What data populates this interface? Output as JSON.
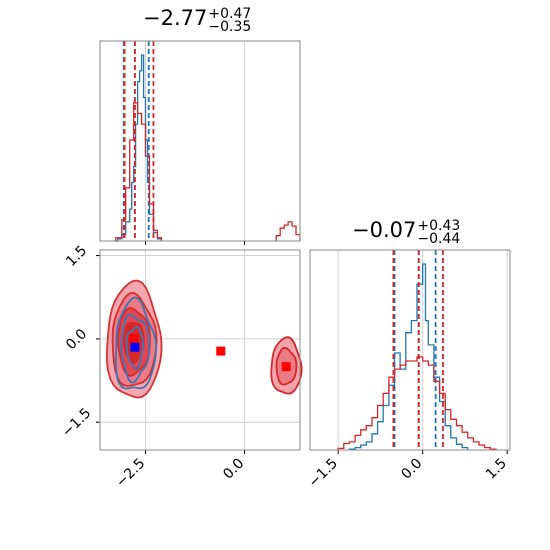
{
  "chart_data": [
    {
      "type": "histogram",
      "panel": "top-left marginal",
      "title_value": "−2.77",
      "title_plus": "+0.47",
      "title_minus": "−0.35",
      "x_ticks": [
        -2.5,
        0.0
      ],
      "xlim": [
        -3.65,
        1.4
      ],
      "grid": true,
      "series": [
        {
          "color": "#1f77b4",
          "bins": [
            [
              -3.3,
              -3.2,
              0
            ],
            [
              -3.2,
              -3.1,
              2
            ],
            [
              -3.1,
              -3.0,
              6
            ],
            [
              -3.0,
              -2.9,
              18
            ],
            [
              -2.9,
              -2.85,
              30
            ],
            [
              -2.85,
              -2.8,
              55
            ],
            [
              -2.8,
              -2.75,
              70
            ],
            [
              -2.75,
              -2.7,
              110
            ],
            [
              -2.7,
              -2.65,
              150
            ],
            [
              -2.65,
              -2.6,
              160
            ],
            [
              -2.6,
              -2.55,
              175
            ],
            [
              -2.55,
              -2.5,
              135
            ],
            [
              -2.5,
              -2.45,
              95
            ],
            [
              -2.45,
              -2.4,
              55
            ],
            [
              -2.4,
              -2.3,
              25
            ],
            [
              -2.3,
              -2.2,
              8
            ],
            [
              -2.2,
              -2.1,
              2
            ]
          ],
          "quantile_lines": [
            -3.05,
            -2.77,
            -2.42
          ]
        },
        {
          "color": "#d62728",
          "bins": [
            [
              -3.25,
              -3.1,
              3
            ],
            [
              -3.1,
              -3.0,
              20
            ],
            [
              -3.0,
              -2.9,
              50
            ],
            [
              -2.9,
              -2.8,
              95
            ],
            [
              -2.8,
              -2.7,
              130
            ],
            [
              -2.7,
              -2.6,
              120
            ],
            [
              -2.6,
              -2.5,
              110
            ],
            [
              -2.5,
              -2.4,
              80
            ],
            [
              -2.4,
              -2.3,
              35
            ],
            [
              -2.3,
              -2.2,
              10
            ],
            [
              -2.2,
              -2.1,
              3
            ],
            [
              0.8,
              0.9,
              5
            ],
            [
              0.9,
              1.0,
              12
            ],
            [
              1.0,
              1.1,
              15
            ],
            [
              1.1,
              1.2,
              18
            ],
            [
              1.2,
              1.3,
              14
            ],
            [
              1.3,
              1.4,
              6
            ]
          ],
          "quantile_lines": [
            -3.03,
            -2.77,
            -2.3
          ]
        }
      ]
    },
    {
      "type": "contour",
      "panel": "bottom-left 2D",
      "x_ticks": [
        -2.5,
        0.0
      ],
      "y_ticks": [
        -1.5,
        0.0,
        1.5
      ],
      "xlim": [
        -3.65,
        1.4
      ],
      "ylim": [
        -2.0,
        1.6
      ],
      "grid": true,
      "series": [
        {
          "color": "#1f77b4",
          "mode_x": -2.77,
          "mode_y": -0.15,
          "marker": [
            -2.77,
            -0.15
          ],
          "marker_color": "#0000ff"
        },
        {
          "color": "#d62728",
          "mode_x": -2.8,
          "mode_y": -0.05,
          "secondary_mode": [
            1.05,
            -0.5
          ],
          "markers": [
            [
              -2.8,
              0.0
            ],
            [
              -0.6,
              -0.22
            ],
            [
              1.05,
              -0.5
            ]
          ],
          "marker_color": "#ff0000"
        }
      ]
    },
    {
      "type": "histogram",
      "panel": "bottom-right marginal",
      "title_value": "−0.07",
      "title_plus": "+0.43",
      "title_minus": "−0.44",
      "x_ticks": [
        -1.5,
        0.0,
        1.5
      ],
      "xlim": [
        -2.0,
        1.55
      ],
      "grid": true,
      "series": [
        {
          "color": "#1f77b4",
          "bins": [
            [
              -1.3,
              -1.2,
              1
            ],
            [
              -1.2,
              -1.1,
              3
            ],
            [
              -1.1,
              -1.0,
              6
            ],
            [
              -1.0,
              -0.9,
              10
            ],
            [
              -0.9,
              -0.8,
              20
            ],
            [
              -0.8,
              -0.7,
              35
            ],
            [
              -0.7,
              -0.6,
              55
            ],
            [
              -0.6,
              -0.5,
              80
            ],
            [
              -0.5,
              -0.4,
              120
            ],
            [
              -0.4,
              -0.3,
              100
            ],
            [
              -0.3,
              -0.2,
              145
            ],
            [
              -0.2,
              -0.1,
              160
            ],
            [
              -0.1,
              0.0,
              205
            ],
            [
              0.0,
              0.05,
              230
            ],
            [
              0.05,
              0.1,
              160
            ],
            [
              0.1,
              0.2,
              130
            ],
            [
              0.2,
              0.3,
              90
            ],
            [
              0.3,
              0.4,
              60
            ],
            [
              0.4,
              0.5,
              30
            ],
            [
              0.5,
              0.6,
              15
            ],
            [
              0.6,
              0.7,
              7
            ],
            [
              0.7,
              0.8,
              3
            ]
          ],
          "quantile_lines": [
            -0.5,
            -0.07,
            0.23
          ]
        },
        {
          "color": "#d62728",
          "bins": [
            [
              -1.5,
              -1.4,
              2
            ],
            [
              -1.4,
              -1.3,
              8
            ],
            [
              -1.3,
              -1.2,
              10
            ],
            [
              -1.2,
              -1.1,
              18
            ],
            [
              -1.1,
              -1.0,
              25
            ],
            [
              -1.0,
              -0.9,
              30
            ],
            [
              -0.9,
              -0.8,
              40
            ],
            [
              -0.8,
              -0.7,
              55
            ],
            [
              -0.7,
              -0.6,
              70
            ],
            [
              -0.6,
              -0.5,
              90
            ],
            [
              -0.5,
              -0.4,
              100
            ],
            [
              -0.4,
              -0.3,
              105
            ],
            [
              -0.3,
              -0.2,
              110
            ],
            [
              -0.2,
              -0.1,
              110
            ],
            [
              -0.1,
              0.0,
              115
            ],
            [
              0.0,
              0.1,
              110
            ],
            [
              0.1,
              0.2,
              105
            ],
            [
              0.2,
              0.3,
              85
            ],
            [
              0.3,
              0.4,
              70
            ],
            [
              0.4,
              0.5,
              50
            ],
            [
              0.5,
              0.6,
              38
            ],
            [
              0.6,
              0.7,
              30
            ],
            [
              0.7,
              0.8,
              22
            ],
            [
              0.8,
              0.9,
              15
            ],
            [
              0.9,
              1.0,
              10
            ],
            [
              1.0,
              1.1,
              6
            ],
            [
              1.1,
              1.2,
              3
            ],
            [
              1.2,
              1.3,
              1
            ]
          ],
          "quantile_lines": [
            -0.52,
            -0.07,
            0.36
          ]
        }
      ]
    }
  ]
}
